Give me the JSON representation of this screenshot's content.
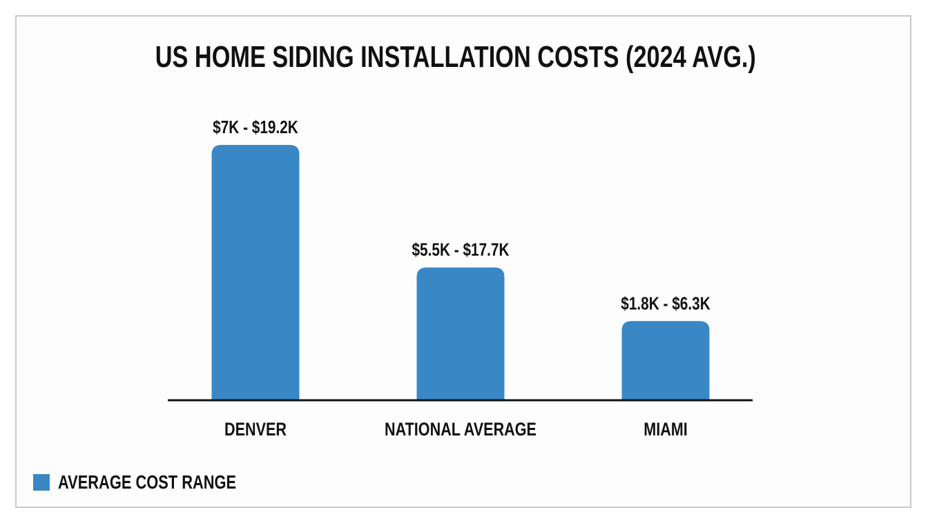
{
  "chart_data": {
    "type": "bar",
    "title": "US HOME SIDING INSTALLATION COSTS (2024 AVG.)",
    "categories": [
      "DENVER",
      "NATIONAL AVERAGE",
      "MIAMI"
    ],
    "data_labels": [
      "$7K - $19.2K",
      "$5.5K - $17.7K",
      "$1.8K - $6.3K"
    ],
    "ranges": [
      {
        "low": 7000,
        "high": 19200
      },
      {
        "low": 5500,
        "high": 17700
      },
      {
        "low": 1800,
        "high": 6300
      }
    ],
    "bar_levels": [
      1.0,
      0.52,
      0.31
    ],
    "series": [
      {
        "name": "AVERAGE COST RANGE",
        "color": "#3a87c6"
      }
    ],
    "xlabel": "",
    "ylabel": "",
    "grid": false,
    "legend_position": "bottom-left"
  }
}
